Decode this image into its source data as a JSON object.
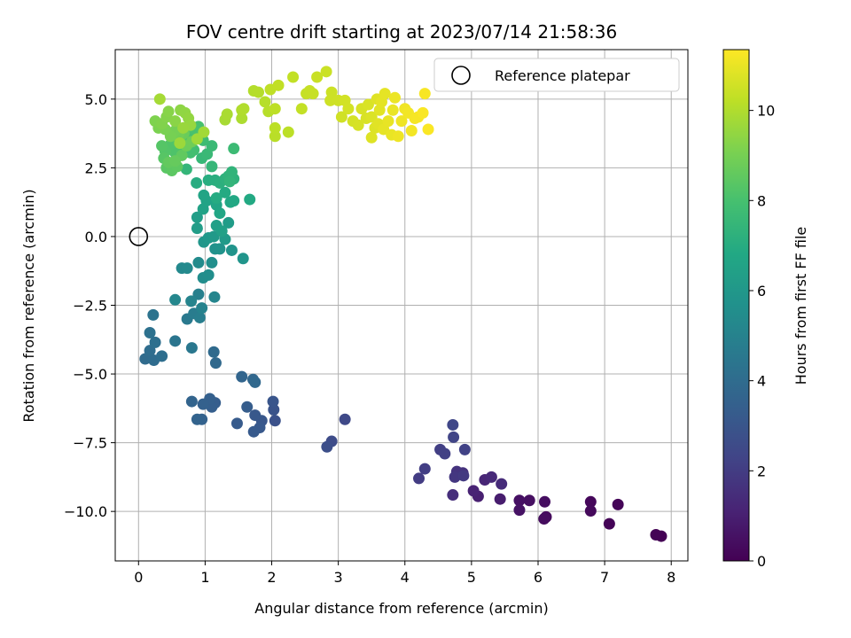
{
  "chart_data": {
    "type": "scatter",
    "title": "FOV centre drift starting at 2023/07/14 21:58:36",
    "xlabel": "Angular distance from reference (arcmin)",
    "ylabel": "Rotation from reference (arcmin)",
    "xlim": [
      -0.35,
      8.25
    ],
    "ylim": [
      -11.8,
      6.8
    ],
    "xticks": [
      0,
      1,
      2,
      3,
      4,
      5,
      6,
      7,
      8
    ],
    "xtick_labels": [
      "0",
      "1",
      "2",
      "3",
      "4",
      "5",
      "6",
      "7",
      "8"
    ],
    "yticks": [
      5.0,
      2.5,
      0.0,
      -2.5,
      -5.0,
      -7.5,
      -10.0
    ],
    "ytick_labels": [
      "5.0",
      "2.5",
      "0.0",
      "−2.5",
      "−5.0",
      "−7.5",
      "−10.0"
    ],
    "grid": true,
    "legend": {
      "position": "top-right",
      "entries": [
        {
          "label": "Reference platepar",
          "marker": "open-circle"
        }
      ]
    },
    "reference_point": {
      "x": 0,
      "y": 0
    },
    "colorbar": {
      "label": "Hours from first FF file",
      "colormap": "viridis",
      "range": [
        0,
        11.35
      ],
      "ticks": [
        0,
        2,
        4,
        6,
        8,
        10
      ],
      "tick_labels": [
        "0",
        "2",
        "4",
        "6",
        "8",
        "10"
      ]
    },
    "points": [
      {
        "x": 7.85,
        "y": -10.9,
        "t": 0.0
      },
      {
        "x": 7.77,
        "y": -10.85,
        "t": 0.05
      },
      {
        "x": 7.07,
        "y": -10.45,
        "t": 0.1
      },
      {
        "x": 7.2,
        "y": -9.75,
        "t": 0.15
      },
      {
        "x": 6.79,
        "y": -9.65,
        "t": 0.2
      },
      {
        "x": 6.79,
        "y": -9.98,
        "t": 0.25
      },
      {
        "x": 6.12,
        "y": -10.2,
        "t": 0.3
      },
      {
        "x": 6.09,
        "y": -10.27,
        "t": 0.35
      },
      {
        "x": 6.1,
        "y": -9.65,
        "t": 0.4
      },
      {
        "x": 5.87,
        "y": -9.6,
        "t": 0.45
      },
      {
        "x": 5.72,
        "y": -9.6,
        "t": 0.5
      },
      {
        "x": 5.72,
        "y": -9.95,
        "t": 0.55
      },
      {
        "x": 5.43,
        "y": -9.55,
        "t": 0.9
      },
      {
        "x": 5.1,
        "y": -9.45,
        "t": 1.0
      },
      {
        "x": 5.03,
        "y": -9.25,
        "t": 1.1
      },
      {
        "x": 5.2,
        "y": -8.85,
        "t": 1.2
      },
      {
        "x": 5.3,
        "y": -8.75,
        "t": 1.3
      },
      {
        "x": 5.45,
        "y": -9.0,
        "t": 1.4
      },
      {
        "x": 4.72,
        "y": -9.4,
        "t": 1.5
      },
      {
        "x": 4.87,
        "y": -8.6,
        "t": 1.6
      },
      {
        "x": 4.78,
        "y": -8.55,
        "t": 1.7
      },
      {
        "x": 4.75,
        "y": -8.75,
        "t": 1.8
      },
      {
        "x": 4.88,
        "y": -8.7,
        "t": 1.9
      },
      {
        "x": 4.21,
        "y": -8.8,
        "t": 2.0
      },
      {
        "x": 4.3,
        "y": -8.45,
        "t": 2.05
      },
      {
        "x": 4.53,
        "y": -7.75,
        "t": 2.1
      },
      {
        "x": 4.6,
        "y": -7.9,
        "t": 2.15
      },
      {
        "x": 4.9,
        "y": -7.75,
        "t": 2.2
      },
      {
        "x": 4.73,
        "y": -7.3,
        "t": 2.3
      },
      {
        "x": 4.72,
        "y": -6.85,
        "t": 2.4
      },
      {
        "x": 3.1,
        "y": -6.65,
        "t": 2.5
      },
      {
        "x": 2.9,
        "y": -7.45,
        "t": 2.6
      },
      {
        "x": 2.83,
        "y": -7.65,
        "t": 2.7
      },
      {
        "x": 2.05,
        "y": -6.7,
        "t": 2.8
      },
      {
        "x": 2.03,
        "y": -6.3,
        "t": 2.9
      },
      {
        "x": 2.02,
        "y": -6.0,
        "t": 3.0
      },
      {
        "x": 1.85,
        "y": -6.7,
        "t": 3.05
      },
      {
        "x": 1.75,
        "y": -6.5,
        "t": 3.1
      },
      {
        "x": 1.82,
        "y": -6.95,
        "t": 3.15
      },
      {
        "x": 1.73,
        "y": -7.1,
        "t": 3.2
      },
      {
        "x": 1.48,
        "y": -6.8,
        "t": 3.25
      },
      {
        "x": 1.63,
        "y": -6.2,
        "t": 3.3
      },
      {
        "x": 1.15,
        "y": -6.05,
        "t": 3.35
      },
      {
        "x": 1.1,
        "y": -6.2,
        "t": 3.4
      },
      {
        "x": 1.07,
        "y": -5.9,
        "t": 3.45
      },
      {
        "x": 0.97,
        "y": -6.1,
        "t": 3.5
      },
      {
        "x": 0.95,
        "y": -6.65,
        "t": 3.55
      },
      {
        "x": 0.88,
        "y": -6.65,
        "t": 3.6
      },
      {
        "x": 0.8,
        "y": -6.0,
        "t": 3.65
      },
      {
        "x": 1.55,
        "y": -5.1,
        "t": 3.7
      },
      {
        "x": 1.72,
        "y": -5.2,
        "t": 3.75
      },
      {
        "x": 1.75,
        "y": -5.3,
        "t": 3.8
      },
      {
        "x": 1.16,
        "y": -4.6,
        "t": 3.85
      },
      {
        "x": 1.13,
        "y": -4.2,
        "t": 3.9
      },
      {
        "x": 0.1,
        "y": -4.45,
        "t": 3.95
      },
      {
        "x": 0.23,
        "y": -4.5,
        "t": 4.0
      },
      {
        "x": 0.17,
        "y": -4.15,
        "t": 4.05
      },
      {
        "x": 0.35,
        "y": -4.35,
        "t": 4.1
      },
      {
        "x": 0.25,
        "y": -3.85,
        "t": 4.15
      },
      {
        "x": 0.17,
        "y": -3.5,
        "t": 4.2
      },
      {
        "x": 0.22,
        "y": -2.85,
        "t": 4.3
      },
      {
        "x": 0.55,
        "y": -3.8,
        "t": 4.4
      },
      {
        "x": 0.8,
        "y": -4.05,
        "t": 4.5
      },
      {
        "x": 0.73,
        "y": -3.0,
        "t": 4.6
      },
      {
        "x": 0.83,
        "y": -2.8,
        "t": 4.7
      },
      {
        "x": 0.92,
        "y": -2.95,
        "t": 4.8
      },
      {
        "x": 0.9,
        "y": -2.1,
        "t": 4.9
      },
      {
        "x": 0.95,
        "y": -2.6,
        "t": 5.0
      },
      {
        "x": 0.79,
        "y": -2.35,
        "t": 5.1
      },
      {
        "x": 1.14,
        "y": -2.2,
        "t": 5.15
      },
      {
        "x": 0.55,
        "y": -2.3,
        "t": 5.2
      },
      {
        "x": 0.65,
        "y": -1.15,
        "t": 5.3
      },
      {
        "x": 0.73,
        "y": -1.15,
        "t": 5.35
      },
      {
        "x": 0.9,
        "y": -0.95,
        "t": 5.4
      },
      {
        "x": 0.97,
        "y": -1.5,
        "t": 5.5
      },
      {
        "x": 1.05,
        "y": -1.4,
        "t": 5.55
      },
      {
        "x": 1.1,
        "y": -0.95,
        "t": 5.6
      },
      {
        "x": 1.15,
        "y": -0.45,
        "t": 5.7
      },
      {
        "x": 1.22,
        "y": -0.45,
        "t": 5.75
      },
      {
        "x": 1.4,
        "y": -0.5,
        "t": 5.8
      },
      {
        "x": 1.57,
        "y": -0.8,
        "t": 5.85
      },
      {
        "x": 0.98,
        "y": -0.2,
        "t": 5.9
      },
      {
        "x": 1.05,
        "y": -0.05,
        "t": 6.0
      },
      {
        "x": 1.13,
        "y": 0.0,
        "t": 6.05
      },
      {
        "x": 1.3,
        "y": -0.1,
        "t": 6.1
      },
      {
        "x": 1.35,
        "y": 0.5,
        "t": 6.2
      },
      {
        "x": 0.88,
        "y": 0.3,
        "t": 6.25
      },
      {
        "x": 0.88,
        "y": 0.7,
        "t": 6.3
      },
      {
        "x": 1.17,
        "y": 0.4,
        "t": 6.35
      },
      {
        "x": 1.25,
        "y": 0.2,
        "t": 6.4
      },
      {
        "x": 0.97,
        "y": 1.0,
        "t": 6.5
      },
      {
        "x": 1.02,
        "y": 1.3,
        "t": 6.55
      },
      {
        "x": 0.98,
        "y": 1.5,
        "t": 6.6
      },
      {
        "x": 1.17,
        "y": 1.15,
        "t": 6.65
      },
      {
        "x": 1.22,
        "y": 0.85,
        "t": 6.7
      },
      {
        "x": 1.38,
        "y": 1.25,
        "t": 6.75
      },
      {
        "x": 1.43,
        "y": 1.3,
        "t": 6.8
      },
      {
        "x": 1.67,
        "y": 1.35,
        "t": 6.85
      },
      {
        "x": 1.3,
        "y": 1.6,
        "t": 6.9
      },
      {
        "x": 1.17,
        "y": 1.4,
        "t": 6.95
      },
      {
        "x": 0.87,
        "y": 1.95,
        "t": 7.0
      },
      {
        "x": 1.05,
        "y": 2.05,
        "t": 7.05
      },
      {
        "x": 1.15,
        "y": 2.05,
        "t": 7.1
      },
      {
        "x": 1.22,
        "y": 1.95,
        "t": 7.15
      },
      {
        "x": 1.3,
        "y": 2.1,
        "t": 7.2
      },
      {
        "x": 1.43,
        "y": 2.1,
        "t": 7.25
      },
      {
        "x": 1.35,
        "y": 2.2,
        "t": 7.3
      },
      {
        "x": 1.4,
        "y": 2.35,
        "t": 7.35
      },
      {
        "x": 1.37,
        "y": 2.0,
        "t": 7.4
      },
      {
        "x": 0.72,
        "y": 2.45,
        "t": 7.45
      },
      {
        "x": 1.1,
        "y": 2.55,
        "t": 7.5
      },
      {
        "x": 0.95,
        "y": 2.85,
        "t": 7.55
      },
      {
        "x": 1.03,
        "y": 3.0,
        "t": 7.6
      },
      {
        "x": 1.1,
        "y": 3.3,
        "t": 7.65
      },
      {
        "x": 1.43,
        "y": 3.2,
        "t": 7.7
      },
      {
        "x": 0.97,
        "y": 3.5,
        "t": 7.75
      },
      {
        "x": 0.9,
        "y": 3.75,
        "t": 7.8
      },
      {
        "x": 0.83,
        "y": 3.15,
        "t": 7.85
      },
      {
        "x": 0.78,
        "y": 3.05,
        "t": 7.9
      },
      {
        "x": 0.75,
        "y": 3.6,
        "t": 7.95
      },
      {
        "x": 0.9,
        "y": 4.0,
        "t": 8.0
      },
      {
        "x": 0.83,
        "y": 3.9,
        "t": 8.05
      },
      {
        "x": 0.62,
        "y": 3.2,
        "t": 8.1
      },
      {
        "x": 0.55,
        "y": 3.05,
        "t": 8.15
      },
      {
        "x": 0.48,
        "y": 3.35,
        "t": 8.2
      },
      {
        "x": 0.4,
        "y": 3.1,
        "t": 8.25
      },
      {
        "x": 0.35,
        "y": 3.3,
        "t": 8.3
      },
      {
        "x": 0.38,
        "y": 2.85,
        "t": 8.35
      },
      {
        "x": 0.42,
        "y": 2.5,
        "t": 8.4
      },
      {
        "x": 0.5,
        "y": 2.4,
        "t": 8.45
      },
      {
        "x": 0.58,
        "y": 2.55,
        "t": 8.5
      },
      {
        "x": 0.65,
        "y": 2.95,
        "t": 8.55
      },
      {
        "x": 0.45,
        "y": 2.7,
        "t": 8.6
      },
      {
        "x": 0.55,
        "y": 2.75,
        "t": 8.65
      },
      {
        "x": 0.62,
        "y": 3.55,
        "t": 8.7
      },
      {
        "x": 0.68,
        "y": 3.75,
        "t": 8.75
      },
      {
        "x": 0.72,
        "y": 3.3,
        "t": 8.8
      },
      {
        "x": 0.8,
        "y": 3.45,
        "t": 8.85
      },
      {
        "x": 0.6,
        "y": 3.7,
        "t": 8.9
      },
      {
        "x": 0.55,
        "y": 3.85,
        "t": 8.95
      },
      {
        "x": 0.48,
        "y": 3.65,
        "t": 9.0
      },
      {
        "x": 0.4,
        "y": 3.9,
        "t": 9.05
      },
      {
        "x": 0.3,
        "y": 3.95,
        "t": 9.1
      },
      {
        "x": 0.25,
        "y": 4.2,
        "t": 9.15
      },
      {
        "x": 0.35,
        "y": 4.1,
        "t": 9.2
      },
      {
        "x": 0.42,
        "y": 4.35,
        "t": 9.25
      },
      {
        "x": 0.45,
        "y": 4.55,
        "t": 9.3
      },
      {
        "x": 0.55,
        "y": 4.2,
        "t": 9.35
      },
      {
        "x": 0.63,
        "y": 4.6,
        "t": 9.4
      },
      {
        "x": 0.7,
        "y": 4.5,
        "t": 9.45
      },
      {
        "x": 0.75,
        "y": 4.3,
        "t": 9.5
      },
      {
        "x": 0.78,
        "y": 4.05,
        "t": 9.55
      },
      {
        "x": 0.67,
        "y": 3.95,
        "t": 9.6
      },
      {
        "x": 0.62,
        "y": 3.4,
        "t": 9.65
      },
      {
        "x": 0.88,
        "y": 3.55,
        "t": 9.7
      },
      {
        "x": 0.98,
        "y": 3.8,
        "t": 9.75
      },
      {
        "x": 0.32,
        "y": 5.0,
        "t": 9.8
      },
      {
        "x": 1.3,
        "y": 4.25,
        "t": 9.85
      },
      {
        "x": 1.33,
        "y": 4.45,
        "t": 9.9
      },
      {
        "x": 1.55,
        "y": 4.3,
        "t": 9.95
      },
      {
        "x": 1.55,
        "y": 4.6,
        "t": 10.0
      },
      {
        "x": 1.58,
        "y": 4.65,
        "t": 10.02
      },
      {
        "x": 1.73,
        "y": 5.3,
        "t": 10.05
      },
      {
        "x": 1.8,
        "y": 5.25,
        "t": 10.08
      },
      {
        "x": 1.9,
        "y": 4.9,
        "t": 10.1
      },
      {
        "x": 1.95,
        "y": 4.55,
        "t": 10.12
      },
      {
        "x": 2.05,
        "y": 3.65,
        "t": 10.15
      },
      {
        "x": 2.05,
        "y": 3.95,
        "t": 10.18
      },
      {
        "x": 2.25,
        "y": 3.8,
        "t": 10.2
      },
      {
        "x": 2.05,
        "y": 4.65,
        "t": 10.22
      },
      {
        "x": 1.98,
        "y": 5.35,
        "t": 10.25
      },
      {
        "x": 2.1,
        "y": 5.5,
        "t": 10.28
      },
      {
        "x": 2.32,
        "y": 5.8,
        "t": 10.3
      },
      {
        "x": 2.45,
        "y": 4.65,
        "t": 10.32
      },
      {
        "x": 2.52,
        "y": 5.2,
        "t": 10.35
      },
      {
        "x": 2.57,
        "y": 5.3,
        "t": 10.38
      },
      {
        "x": 2.62,
        "y": 5.2,
        "t": 10.4
      },
      {
        "x": 2.68,
        "y": 5.8,
        "t": 10.42
      },
      {
        "x": 2.82,
        "y": 6.0,
        "t": 10.45
      },
      {
        "x": 2.9,
        "y": 5.25,
        "t": 10.48
      },
      {
        "x": 2.88,
        "y": 4.95,
        "t": 10.5
      },
      {
        "x": 3.0,
        "y": 4.95,
        "t": 10.52
      },
      {
        "x": 3.05,
        "y": 4.35,
        "t": 10.55
      },
      {
        "x": 3.1,
        "y": 4.95,
        "t": 10.58
      },
      {
        "x": 3.15,
        "y": 4.65,
        "t": 10.6
      },
      {
        "x": 3.22,
        "y": 4.2,
        "t": 10.62
      },
      {
        "x": 3.3,
        "y": 4.05,
        "t": 10.65
      },
      {
        "x": 3.35,
        "y": 4.65,
        "t": 10.68
      },
      {
        "x": 3.42,
        "y": 4.3,
        "t": 10.7
      },
      {
        "x": 3.45,
        "y": 4.8,
        "t": 10.72
      },
      {
        "x": 3.5,
        "y": 4.35,
        "t": 10.75
      },
      {
        "x": 3.55,
        "y": 3.95,
        "t": 10.78
      },
      {
        "x": 3.5,
        "y": 3.6,
        "t": 10.8
      },
      {
        "x": 3.58,
        "y": 5.0,
        "t": 10.82
      },
      {
        "x": 3.6,
        "y": 4.1,
        "t": 10.85
      },
      {
        "x": 3.62,
        "y": 4.6,
        "t": 10.88
      },
      {
        "x": 3.65,
        "y": 4.9,
        "t": 10.9
      },
      {
        "x": 3.7,
        "y": 5.2,
        "t": 10.92
      },
      {
        "x": 3.68,
        "y": 3.9,
        "t": 10.95
      },
      {
        "x": 3.75,
        "y": 4.2,
        "t": 10.98
      },
      {
        "x": 3.8,
        "y": 3.7,
        "t": 11.0
      },
      {
        "x": 3.82,
        "y": 4.6,
        "t": 11.02
      },
      {
        "x": 3.85,
        "y": 5.05,
        "t": 11.05
      },
      {
        "x": 3.9,
        "y": 3.65,
        "t": 11.08
      },
      {
        "x": 3.95,
        "y": 4.2,
        "t": 11.1
      },
      {
        "x": 4.0,
        "y": 4.65,
        "t": 11.12
      },
      {
        "x": 4.05,
        "y": 4.5,
        "t": 11.15
      },
      {
        "x": 4.1,
        "y": 3.85,
        "t": 11.18
      },
      {
        "x": 4.15,
        "y": 4.3,
        "t": 11.2
      },
      {
        "x": 4.2,
        "y": 4.35,
        "t": 11.22
      },
      {
        "x": 4.3,
        "y": 5.2,
        "t": 11.25
      },
      {
        "x": 4.27,
        "y": 4.5,
        "t": 11.28
      },
      {
        "x": 4.35,
        "y": 3.9,
        "t": 11.3
      }
    ]
  }
}
